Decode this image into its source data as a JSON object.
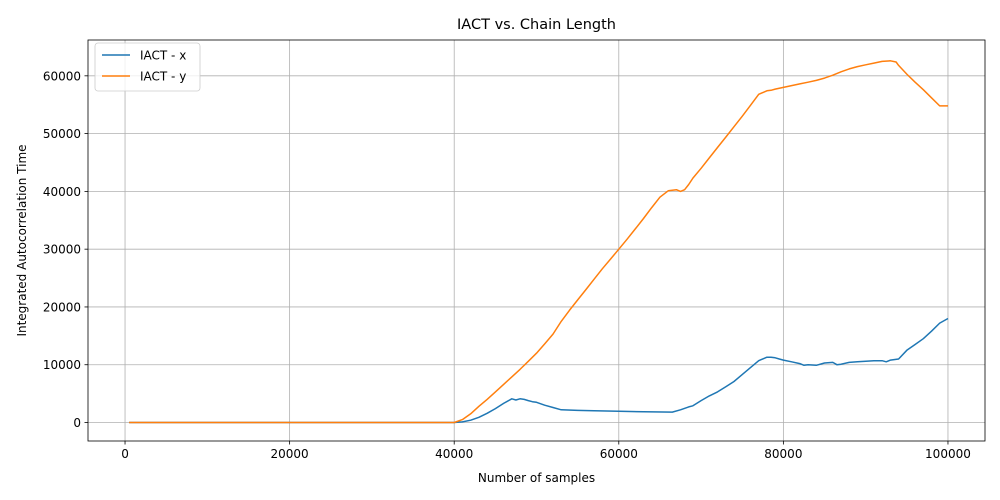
{
  "chart_data": {
    "type": "line",
    "title": "IACT vs. Chain Length",
    "xlabel": "Number of samples",
    "ylabel": "Integrated Autocorrelation Time",
    "xlim": [
      -4500,
      104500
    ],
    "ylim": [
      -3200,
      66200
    ],
    "xticks": [
      0,
      20000,
      40000,
      60000,
      80000,
      100000
    ],
    "xtick_labels": [
      "0",
      "20000",
      "40000",
      "60000",
      "80000",
      "100000"
    ],
    "yticks": [
      0,
      10000,
      20000,
      30000,
      40000,
      50000,
      60000
    ],
    "ytick_labels": [
      "0",
      "10000",
      "20000",
      "30000",
      "40000",
      "50000",
      "60000"
    ],
    "grid": true,
    "legend_position": "top-left",
    "series": [
      {
        "name": "IACT - x",
        "color": "#1f77b4",
        "x": [
          500,
          10000,
          20000,
          30000,
          40000,
          41000,
          42000,
          43000,
          44000,
          45000,
          46000,
          47000,
          47500,
          48000,
          48500,
          49000,
          49500,
          50000,
          51000,
          52000,
          53000,
          55000,
          57000,
          60000,
          63000,
          66500,
          67500,
          68500,
          69000,
          70000,
          71000,
          72000,
          73000,
          74000,
          75000,
          76000,
          77000,
          78000,
          78500,
          79000,
          79500,
          80000,
          81000,
          82000,
          82500,
          83000,
          84000,
          85000,
          86000,
          86500,
          87000,
          88000,
          89000,
          90000,
          91000,
          92000,
          92500,
          93000,
          94000,
          95000,
          96000,
          97000,
          98000,
          99000,
          100000
        ],
        "y": [
          0,
          0,
          0,
          0,
          0,
          100,
          400,
          900,
          1600,
          2400,
          3300,
          4100,
          3900,
          4100,
          4000,
          3800,
          3600,
          3500,
          3000,
          2600,
          2200,
          2100,
          2050,
          1950,
          1850,
          1800,
          2200,
          2700,
          2900,
          3800,
          4600,
          5300,
          6200,
          7100,
          8300,
          9500,
          10700,
          11300,
          11300,
          11200,
          11000,
          10800,
          10500,
          10200,
          9900,
          10000,
          9900,
          10300,
          10400,
          10000,
          10100,
          10400,
          10500,
          10600,
          10700,
          10700,
          10500,
          10800,
          11000,
          12500,
          13500,
          14500,
          15800,
          17200,
          18000
        ]
      },
      {
        "name": "IACT - y",
        "color": "#ff7f0e",
        "x": [
          500,
          10000,
          20000,
          30000,
          40000,
          41000,
          42000,
          43000,
          44000,
          45000,
          46000,
          47000,
          48000,
          49000,
          50000,
          51000,
          52000,
          53000,
          54000,
          55000,
          56000,
          57000,
          58000,
          59000,
          60000,
          61000,
          62000,
          63000,
          64000,
          65000,
          66000,
          67000,
          67500,
          68000,
          68500,
          69000,
          70000,
          71000,
          72000,
          73000,
          74000,
          75000,
          76000,
          77000,
          78000,
          78500,
          79000,
          80000,
          81000,
          82000,
          83000,
          84000,
          85000,
          86000,
          87000,
          88000,
          89000,
          90000,
          91000,
          92000,
          93000,
          93700,
          94000,
          95000,
          96000,
          97000,
          98000,
          99000,
          100000
        ],
        "y": [
          0,
          0,
          0,
          0,
          0,
          500,
          1500,
          2800,
          4000,
          5300,
          6600,
          7900,
          9200,
          10600,
          12000,
          13600,
          15300,
          17500,
          19400,
          21200,
          23000,
          24800,
          26600,
          28300,
          30000,
          31700,
          33500,
          35300,
          37200,
          39000,
          40100,
          40300,
          40000,
          40300,
          41200,
          42300,
          44000,
          45800,
          47600,
          49400,
          51200,
          53000,
          54900,
          56800,
          57400,
          57500,
          57700,
          58000,
          58300,
          58600,
          58900,
          59200,
          59600,
          60100,
          60700,
          61200,
          61600,
          61900,
          62200,
          62500,
          62600,
          62400,
          61800,
          60300,
          58900,
          57600,
          56200,
          54800,
          54800
        ]
      }
    ]
  }
}
